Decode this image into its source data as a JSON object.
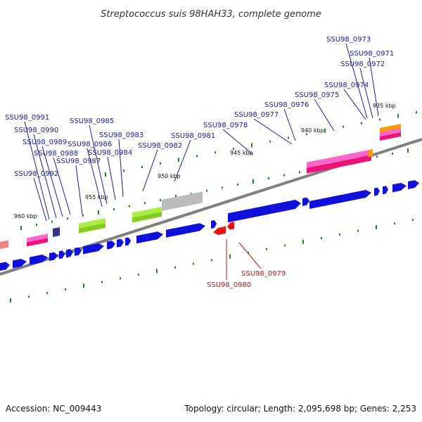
{
  "title": "Streptococcus suis 98HAH33, complete genome",
  "footer": {
    "accession": "Accession: NC_009443",
    "stats": "Topology: circular; Length: 2,095,698 bp; Genes: 2,253"
  },
  "colors": {
    "gene": "#1010dd",
    "gene_highlight": "#ee1111",
    "label_gene": "#1a1aaa",
    "label_highlight": "#cc1111",
    "backbone": "#808080",
    "tick": "#1a8a1a"
  },
  "kbp_labels": [
    "935 kbp",
    "940 kbp",
    "945 kbp",
    "950 kbp",
    "955 kbp",
    "960 kbp"
  ],
  "gene_labels": [
    {
      "text": "SSU98_0973",
      "highlight": false
    },
    {
      "text": "SSU98_0971",
      "highlight": false
    },
    {
      "text": "SSU98_0972",
      "highlight": false
    },
    {
      "text": "SSU98_0974",
      "highlight": false
    },
    {
      "text": "SSU98_0975",
      "highlight": false
    },
    {
      "text": "SSU98_0976",
      "highlight": false
    },
    {
      "text": "SSU98_0977",
      "highlight": false
    },
    {
      "text": "SSU98_0978",
      "highlight": false
    },
    {
      "text": "SSU98_0981",
      "highlight": false
    },
    {
      "text": "SSU98_0982",
      "highlight": false
    },
    {
      "text": "SSU98_0983",
      "highlight": false
    },
    {
      "text": "SSU98_0984",
      "highlight": false
    },
    {
      "text": "SSU98_0985",
      "highlight": false
    },
    {
      "text": "SSU98_0986",
      "highlight": false
    },
    {
      "text": "SSU98_0987",
      "highlight": false
    },
    {
      "text": "SSU98_0988",
      "highlight": false
    },
    {
      "text": "SSU98_0989",
      "highlight": false
    },
    {
      "text": "SSU98_0990",
      "highlight": false
    },
    {
      "text": "SSU98_0991",
      "highlight": false
    },
    {
      "text": "SSU98_0992",
      "highlight": false
    },
    {
      "text": "SSU98_0979",
      "highlight": true
    },
    {
      "text": "SSU98_0980",
      "highlight": true
    }
  ]
}
